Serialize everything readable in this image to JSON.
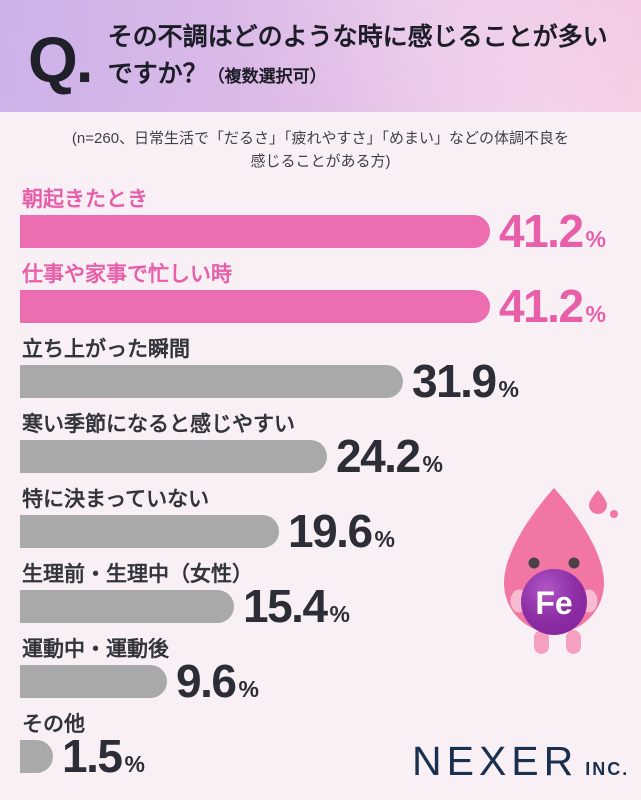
{
  "header": {
    "q_mark": "Q.",
    "title": "その不調はどのような時に感じることが多いですか？",
    "title_suffix": "（複数選択可）"
  },
  "note": {
    "line1": "(n=260、日常生活で「だるさ」「疲れやすさ」「めまい」などの体調不良を",
    "line2": "感じることがある方)"
  },
  "chart_data": {
    "type": "bar",
    "orientation": "horizontal",
    "title": "その不調はどのような時に感じることが多いですか？（複数選択可）",
    "sample_note": "n=260、日常生活で「だるさ」「疲れやすさ」「めまい」などの体調不良を感じることがある方",
    "categories": [
      "朝起きたとき",
      "仕事や家事で忙しい時",
      "立ち上がった瞬間",
      "寒い季節になると感じやすい",
      "特に決まっていない",
      "生理前・生理中（女性）",
      "運動中・運動後",
      "その他"
    ],
    "values": [
      41.2,
      41.2,
      31.9,
      24.2,
      19.6,
      15.4,
      9.6,
      1.5
    ],
    "value_labels": [
      "41.2",
      "41.2",
      "31.9",
      "24.2",
      "19.6",
      "15.4",
      "9.6",
      "1.5"
    ],
    "unit": "%",
    "highlighted": [
      true,
      true,
      false,
      false,
      false,
      false,
      false,
      false
    ],
    "xlim": [
      0,
      45
    ],
    "grid": false,
    "legend": false
  },
  "mascot": {
    "label": "Fe"
  },
  "footer": {
    "logo_main": "NEXER",
    "logo_suffix": "INC."
  },
  "colors": {
    "background": "#f9f0f6",
    "highlight_bar": "#ec6db0",
    "highlight_text": "#e85fa9",
    "default_bar": "#a9a9ab",
    "label_text": "#34343d",
    "value_text": "#2d2d37",
    "header_gradient_left": "#cbb2ea",
    "header_gradient_right": "#f4c4e1",
    "logo_navy": "#19314f",
    "mascot_body": "#f176a3",
    "mascot_circle": "#8e2fa6",
    "mascot_hands": "#f8bcd2",
    "mascot_feet": "#f5a0c0"
  }
}
